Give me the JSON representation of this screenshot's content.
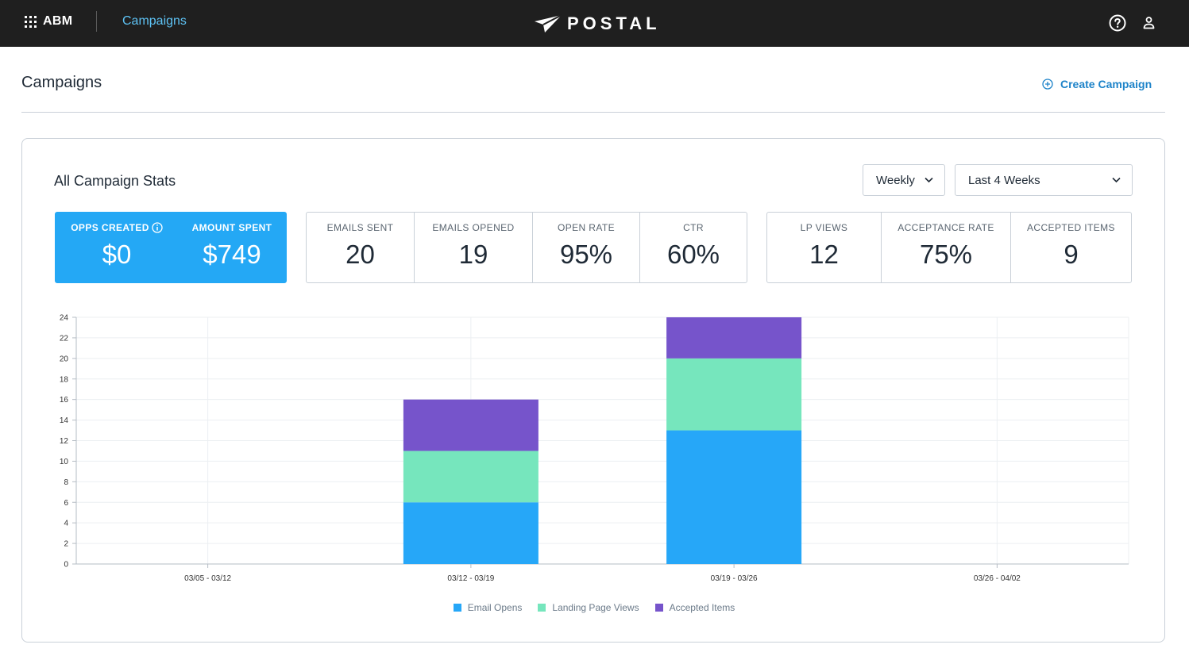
{
  "nav": {
    "abm_label": "ABM",
    "section_label": "Campaigns",
    "logo_text": "POSTAL",
    "help_icon": "help-circle-icon",
    "user_icon": "user-icon"
  },
  "header": {
    "title": "Campaigns",
    "create_label": "Create Campaign"
  },
  "stats_card": {
    "title": "All Campaign Stats",
    "interval_select": "Weekly",
    "range_select": "Last 4 Weeks",
    "highlight_stats": [
      {
        "label": "OPPS CREATED",
        "value": "$0"
      },
      {
        "label": "AMOUNT SPENT",
        "value": "$749"
      }
    ],
    "email_stats": [
      {
        "label": "EMAILS SENT",
        "value": "20"
      },
      {
        "label": "EMAILS OPENED",
        "value": "19"
      },
      {
        "label": "OPEN RATE",
        "value": "95%"
      },
      {
        "label": "CTR",
        "value": "60%"
      }
    ],
    "engagement_stats": [
      {
        "label": "LP VIEWS",
        "value": "12"
      },
      {
        "label": "ACCEPTANCE RATE",
        "value": "75%"
      },
      {
        "label": "ACCEPTED ITEMS",
        "value": "9"
      }
    ]
  },
  "chart_data": {
    "type": "bar",
    "stacked": true,
    "categories": [
      "03/05 - 03/12",
      "03/12 - 03/19",
      "03/19 - 03/26",
      "03/26 - 04/02"
    ],
    "series": [
      {
        "name": "Email Opens",
        "color": "#26a7f8",
        "values": [
          0,
          6,
          13,
          0
        ]
      },
      {
        "name": "Landing Page Views",
        "color": "#76e6bd",
        "values": [
          0,
          5,
          7,
          0
        ]
      },
      {
        "name": "Accepted Items",
        "color": "#7654cb",
        "values": [
          0,
          5,
          4,
          0
        ]
      }
    ],
    "ylim": [
      0,
      24
    ],
    "yticks": [
      0,
      2,
      4,
      6,
      8,
      10,
      12,
      14,
      16,
      18,
      20,
      22,
      24
    ],
    "grid": true,
    "legend": "bottom-center"
  }
}
